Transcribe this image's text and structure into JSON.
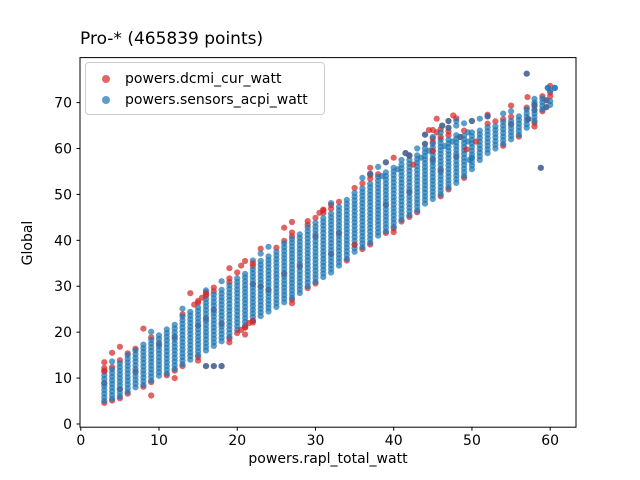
{
  "chart_data": {
    "type": "scatter",
    "title": "Pro-* (465839 points)",
    "xlabel": "powers.rapl_total_watt",
    "ylabel": "Global",
    "xlim": [
      -0.1,
      63.3
    ],
    "ylim": [
      -0.7,
      79.8
    ],
    "xticks": [
      0,
      10,
      20,
      30,
      40,
      50,
      60
    ],
    "yticks": [
      0,
      10,
      20,
      30,
      40,
      50,
      60,
      70
    ],
    "grid": false,
    "legend_position": "upper-left",
    "axes_color": "#000000",
    "legend_border_color": "#cccccc",
    "series": [
      {
        "name": "powers.dcmi_cur_watt",
        "color": "#d62728",
        "display_color": "#e26764",
        "alpha": 0.72
      },
      {
        "name": "powers.sensors_acpi_watt",
        "color": "#1f77b4",
        "display_color": "#5e9dc9",
        "alpha": 0.72
      }
    ],
    "point_count_label": "465839",
    "columns": [
      [
        3,
        5,
        11
      ],
      [
        4,
        5.5,
        12
      ],
      [
        5,
        6,
        13.5
      ],
      [
        6,
        7,
        15
      ],
      [
        7,
        8,
        16
      ],
      [
        8,
        8.5,
        17.5
      ],
      [
        9,
        9.5,
        18.5
      ],
      [
        10,
        10.5,
        20
      ],
      [
        11,
        11,
        21
      ],
      [
        12,
        12,
        22
      ],
      [
        13,
        13,
        23.5
      ],
      [
        14,
        14,
        25
      ],
      [
        15,
        15,
        26
      ],
      [
        16,
        16,
        27.5
      ],
      [
        17,
        17,
        28.5
      ],
      [
        18,
        18,
        29.5
      ],
      [
        19,
        19,
        30.5
      ],
      [
        20,
        20.5,
        32
      ],
      [
        21,
        21.5,
        33
      ],
      [
        22,
        22.5,
        34
      ],
      [
        23,
        23.5,
        35.5
      ],
      [
        24,
        24.5,
        37
      ],
      [
        25,
        25.5,
        38
      ],
      [
        26,
        26.5,
        39.5
      ],
      [
        27,
        27.5,
        40.5
      ],
      [
        28,
        28.5,
        42
      ],
      [
        29,
        30,
        43
      ],
      [
        30,
        31,
        44.5
      ],
      [
        31,
        32,
        45.5
      ],
      [
        32,
        33,
        46.5
      ],
      [
        33,
        34.5,
        48
      ],
      [
        34,
        36,
        49
      ],
      [
        35,
        37.5,
        51
      ],
      [
        36,
        38.5,
        52
      ],
      [
        37,
        39.5,
        53
      ],
      [
        38,
        41,
        54
      ],
      [
        39,
        42,
        55
      ],
      [
        40,
        43,
        56
      ],
      [
        41,
        44.5,
        57
      ],
      [
        42,
        45.5,
        58
      ],
      [
        43,
        46.5,
        59
      ],
      [
        44,
        48,
        60
      ],
      [
        45,
        49,
        61
      ],
      [
        46,
        50,
        62
      ],
      [
        47,
        51.5,
        62.5
      ],
      [
        48,
        52.5,
        63
      ],
      [
        49,
        54,
        63.5
      ],
      [
        50,
        55.5,
        64
      ],
      [
        51,
        57.5,
        64.5
      ],
      [
        52,
        59,
        65
      ],
      [
        53,
        60,
        65.5
      ],
      [
        54,
        61,
        66
      ],
      [
        55,
        62,
        66.5
      ],
      [
        56,
        63,
        67.5
      ],
      [
        57,
        64.5,
        68.5
      ],
      [
        58,
        66,
        71
      ],
      [
        59,
        68.5,
        71
      ],
      [
        60,
        69.5,
        71
      ]
    ],
    "extra_points": [
      [
        16,
        12.6,
        "p"
      ],
      [
        17,
        12.6,
        "p"
      ],
      [
        18,
        12.6,
        "p"
      ],
      [
        57,
        76.3,
        "p"
      ],
      [
        59.7,
        73.2,
        "n"
      ],
      [
        60.6,
        73.2,
        "n"
      ],
      [
        57.1,
        71.2,
        "r"
      ],
      [
        58,
        69.5,
        "p"
      ],
      [
        59.5,
        70.5,
        "p"
      ],
      [
        59.5,
        69,
        "p"
      ],
      [
        58.8,
        55.8,
        "p"
      ],
      [
        57.2,
        66.4,
        "p"
      ],
      [
        45.5,
        63.5,
        "r"
      ],
      [
        46,
        62.5,
        "r"
      ],
      [
        45.5,
        66.5,
        "r"
      ],
      [
        46.2,
        65,
        "p"
      ],
      [
        47,
        66,
        "p"
      ],
      [
        47.6,
        67.2,
        "r"
      ],
      [
        48,
        66,
        "b"
      ],
      [
        44.5,
        64,
        "r"
      ],
      [
        44,
        63,
        "p"
      ],
      [
        37,
        54.5,
        "p"
      ],
      [
        38,
        56,
        "b"
      ],
      [
        38.5,
        54,
        "b"
      ],
      [
        39,
        57,
        "p"
      ],
      [
        40,
        58,
        "r"
      ],
      [
        40.5,
        55.5,
        "b"
      ],
      [
        41,
        57.5,
        "b"
      ],
      [
        41.5,
        59,
        "p"
      ],
      [
        42,
        58.5,
        "p"
      ],
      [
        42.5,
        56.5,
        "r"
      ],
      [
        43,
        60,
        "b"
      ],
      [
        43.5,
        58,
        "b"
      ],
      [
        44,
        61,
        "p"
      ],
      [
        44.5,
        59.5,
        "b"
      ],
      [
        45,
        62.5,
        "b"
      ],
      [
        45,
        59.5,
        "r"
      ],
      [
        46,
        63.5,
        "b"
      ],
      [
        46.5,
        60.5,
        "b"
      ],
      [
        47,
        64.5,
        "p"
      ],
      [
        47.5,
        61.5,
        "b"
      ],
      [
        48,
        65,
        "b"
      ],
      [
        48.5,
        62.5,
        "p"
      ],
      [
        49,
        65.5,
        "b"
      ],
      [
        49.5,
        63.5,
        "b"
      ],
      [
        50,
        66,
        "p"
      ],
      [
        50.5,
        61.5,
        "r"
      ],
      [
        51,
        66.5,
        "b"
      ],
      [
        52,
        67,
        "p"
      ],
      [
        49.5,
        61.5,
        "b"
      ],
      [
        49.3,
        59.8,
        "r"
      ],
      [
        50,
        58,
        "b"
      ],
      [
        49.7,
        57.5,
        "b"
      ],
      [
        3,
        11.6,
        "r"
      ],
      [
        12,
        10,
        "r"
      ],
      [
        9,
        6.2,
        "r"
      ],
      [
        20,
        19.8,
        "r"
      ],
      [
        20.5,
        20.5,
        "r"
      ],
      [
        21,
        21,
        "r"
      ],
      [
        21.5,
        22,
        "r"
      ],
      [
        22,
        22.5,
        "r"
      ],
      [
        21,
        19.5,
        "r"
      ],
      [
        15,
        26.8,
        "r"
      ],
      [
        15.5,
        27.5,
        "r"
      ],
      [
        16,
        28.3,
        "r"
      ],
      [
        14.5,
        26,
        "r"
      ],
      [
        20,
        33,
        "r"
      ],
      [
        20.5,
        34.5,
        "r"
      ],
      [
        21,
        35.5,
        "r"
      ],
      [
        22,
        35,
        "r"
      ],
      [
        30.5,
        46,
        "r"
      ],
      [
        31,
        46.5,
        "r"
      ],
      [
        35,
        39,
        "r"
      ]
    ]
  }
}
